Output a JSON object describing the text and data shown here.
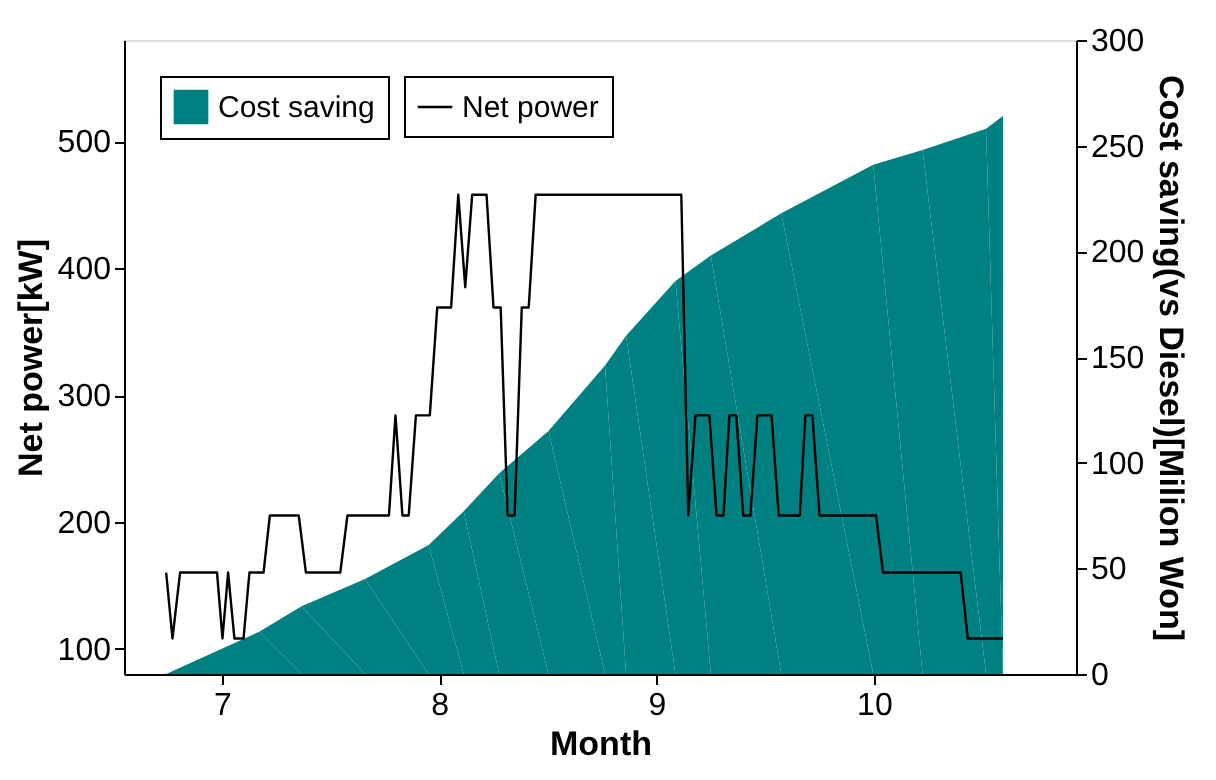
{
  "chart_data": {
    "type": "area",
    "xlabel": "Month",
    "ylabel": "Net power[kW]",
    "y2label": "Cost saving(vs Diesel)[Milion Won]",
    "xlim": [
      6.55,
      10.93
    ],
    "xticks": [
      7,
      8,
      9,
      10
    ],
    "ylim": [
      80,
      580
    ],
    "yticks": [
      100,
      200,
      300,
      400,
      500
    ],
    "y2lim": [
      0,
      300
    ],
    "y2ticks": [
      0,
      50,
      100,
      150,
      200,
      250,
      300
    ],
    "legend": "top left",
    "grid": false,
    "series": [
      {
        "name": "Cost saving",
        "axis": "y2",
        "color": "#008080",
        "x": [
          6.744,
          7.172,
          7.367,
          7.659,
          7.952,
          8.113,
          8.276,
          8.503,
          8.763,
          8.86,
          9.087,
          9.25,
          9.574,
          9.997,
          10.224,
          10.516,
          10.594
        ],
        "values": [
          0,
          20,
          32,
          45,
          61,
          77,
          95,
          115,
          146,
          160,
          186,
          198,
          218,
          241,
          248,
          258,
          264
        ]
      },
      {
        "name": "Net power",
        "type": "line",
        "color": "#000000",
        "x": [
          6.744,
          6.773,
          6.808,
          6.978,
          7.003,
          7.029,
          7.058,
          7.1,
          7.127,
          7.192,
          7.221,
          7.354,
          7.387,
          7.545,
          7.578,
          7.769,
          7.799,
          7.831,
          7.86,
          7.893,
          7.957,
          7.991,
          8.055,
          8.088,
          8.12,
          8.152,
          8.218,
          8.25,
          8.283,
          8.315,
          8.347,
          8.38,
          8.412,
          8.444,
          9.114,
          9.146,
          9.179,
          9.243,
          9.276,
          9.308,
          9.335,
          9.367,
          9.399,
          9.432,
          9.464,
          9.529,
          9.562,
          9.659,
          9.685,
          9.717,
          9.75,
          10.01,
          10.042,
          10.399,
          10.432,
          10.594
        ],
        "values": [
          160,
          108,
          160,
          160,
          108,
          160,
          108,
          108,
          160,
          160,
          205,
          205,
          160,
          160,
          205,
          205,
          284,
          205,
          205,
          284,
          284,
          369,
          369,
          458,
          385,
          458,
          458,
          369,
          369,
          205,
          205,
          369,
          369,
          458,
          458,
          205,
          284,
          284,
          205,
          205,
          284,
          284,
          205,
          205,
          284,
          284,
          205,
          205,
          284,
          284,
          205,
          205,
          160,
          160,
          108,
          108
        ]
      }
    ]
  }
}
